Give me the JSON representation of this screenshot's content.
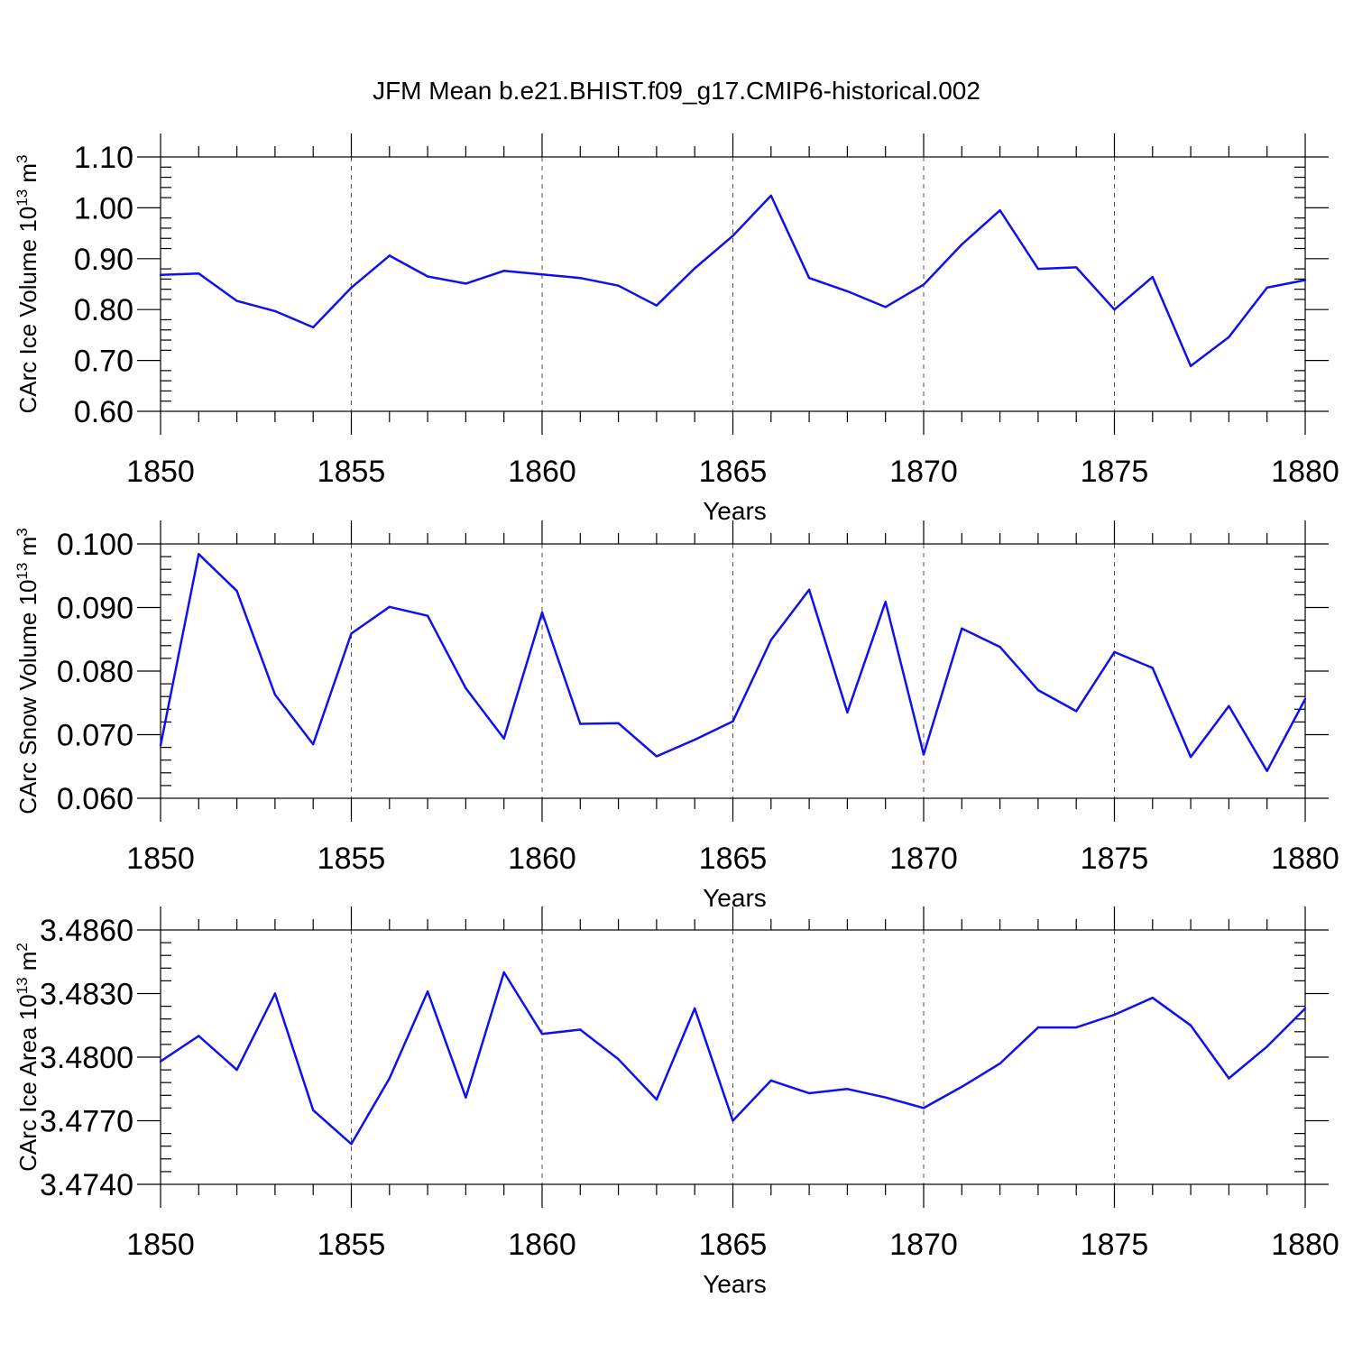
{
  "figure_title": "JFM Mean b.e21.BHIST.f09_g17.CMIP6-historical.002",
  "colors": {
    "line": "#1010ee",
    "frame": "#000000",
    "grid": "#555555"
  },
  "chart_data": [
    {
      "type": "line",
      "title": "",
      "xlabel": "Years",
      "ylabel_main": "CArc Ice Volume 10",
      "ylabel_sup": "13",
      "ylabel_unit": "m",
      "ylabel_unit_sup": "3",
      "xlim": [
        1850,
        1880
      ],
      "ylim": [
        0.6,
        1.1
      ],
      "xticks": [
        1850,
        1855,
        1860,
        1865,
        1870,
        1875,
        1880
      ],
      "xtick_labels": [
        "1850",
        "1855",
        "1860",
        "1865",
        "1870",
        "1875",
        "1880"
      ],
      "yticks": [
        0.6,
        0.7,
        0.8,
        0.9,
        1.0,
        1.1
      ],
      "ytick_labels": [
        "0.60",
        "0.70",
        "0.80",
        "0.90",
        "1.00",
        "1.10"
      ],
      "grid": "x-dashed",
      "series": [
        {
          "name": "CArc Ice Volume",
          "x": [
            1850,
            1851,
            1852,
            1853,
            1854,
            1855,
            1856,
            1857,
            1858,
            1859,
            1860,
            1861,
            1862,
            1863,
            1864,
            1865,
            1866,
            1867,
            1868,
            1869,
            1870,
            1871,
            1872,
            1873,
            1874,
            1875,
            1876,
            1877,
            1878,
            1879,
            1880
          ],
          "values": [
            0.868,
            0.871,
            0.817,
            0.797,
            0.765,
            0.843,
            0.906,
            0.865,
            0.851,
            0.876,
            0.869,
            0.862,
            0.847,
            0.808,
            0.881,
            0.945,
            1.024,
            0.862,
            0.836,
            0.805,
            0.849,
            0.928,
            0.995,
            0.88,
            0.883,
            0.8,
            0.864,
            0.689,
            0.746,
            0.843,
            0.858
          ]
        }
      ]
    },
    {
      "type": "line",
      "title": "",
      "xlabel": "Years",
      "ylabel_main": "CArc Snow Volume 10",
      "ylabel_sup": "13",
      "ylabel_unit": "m",
      "ylabel_unit_sup": "3",
      "xlim": [
        1850,
        1880
      ],
      "ylim": [
        0.06,
        0.1
      ],
      "xticks": [
        1850,
        1855,
        1860,
        1865,
        1870,
        1875,
        1880
      ],
      "xtick_labels": [
        "1850",
        "1855",
        "1860",
        "1865",
        "1870",
        "1875",
        "1880"
      ],
      "yticks": [
        0.06,
        0.07,
        0.08,
        0.09,
        0.1
      ],
      "ytick_labels": [
        "0.060",
        "0.070",
        "0.080",
        "0.090",
        "0.100"
      ],
      "grid": "x-dashed",
      "series": [
        {
          "name": "CArc Snow Volume",
          "x": [
            1850,
            1851,
            1852,
            1853,
            1854,
            1855,
            1856,
            1857,
            1858,
            1859,
            1860,
            1861,
            1862,
            1863,
            1864,
            1865,
            1866,
            1867,
            1868,
            1869,
            1870,
            1871,
            1872,
            1873,
            1874,
            1875,
            1876,
            1877,
            1878,
            1879,
            1880
          ],
          "values": [
            0.0683,
            0.0984,
            0.0926,
            0.0763,
            0.0685,
            0.0859,
            0.0901,
            0.0887,
            0.0773,
            0.0694,
            0.0892,
            0.0717,
            0.0718,
            0.0666,
            0.0692,
            0.0721,
            0.0849,
            0.0928,
            0.0735,
            0.0909,
            0.0669,
            0.0867,
            0.0838,
            0.077,
            0.0737,
            0.083,
            0.0805,
            0.0665,
            0.0745,
            0.0643,
            0.0756
          ]
        }
      ]
    },
    {
      "type": "line",
      "title": "",
      "xlabel": "Years",
      "ylabel_main": "CArc Ice Area 10",
      "ylabel_sup": "13",
      "ylabel_unit": "m",
      "ylabel_unit_sup": "2",
      "xlim": [
        1850,
        1880
      ],
      "ylim": [
        3.474,
        3.486
      ],
      "xticks": [
        1850,
        1855,
        1860,
        1865,
        1870,
        1875,
        1880
      ],
      "xtick_labels": [
        "1850",
        "1855",
        "1860",
        "1865",
        "1870",
        "1875",
        "1880"
      ],
      "yticks": [
        3.474,
        3.477,
        3.48,
        3.483,
        3.486
      ],
      "ytick_labels": [
        "3.4740",
        "3.4770",
        "3.4800",
        "3.4830",
        "3.4860"
      ],
      "grid": "x-dashed",
      "series": [
        {
          "name": "CArc Ice Area",
          "x": [
            1850,
            1851,
            1852,
            1853,
            1854,
            1855,
            1856,
            1857,
            1858,
            1859,
            1860,
            1861,
            1862,
            1863,
            1864,
            1865,
            1866,
            1867,
            1868,
            1869,
            1870,
            1871,
            1872,
            1873,
            1874,
            1875,
            1876,
            1877,
            1878,
            1879,
            1880
          ],
          "values": [
            3.4798,
            3.481,
            3.4794,
            3.483,
            3.4775,
            3.4759,
            3.479,
            3.4831,
            3.4781,
            3.484,
            3.4811,
            3.4813,
            3.4799,
            3.478,
            3.4823,
            3.477,
            3.4789,
            3.4783,
            3.4785,
            3.4781,
            3.4776,
            3.4786,
            3.4797,
            3.4814,
            3.4814,
            3.482,
            3.4828,
            3.4815,
            3.479,
            3.4805,
            3.4823
          ]
        }
      ]
    }
  ]
}
